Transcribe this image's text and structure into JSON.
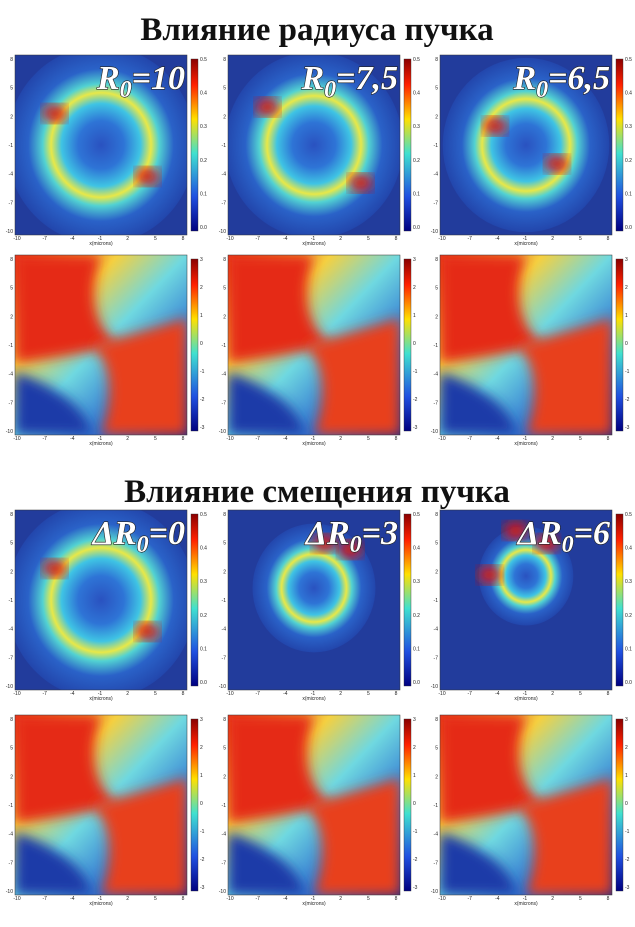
{
  "sections": [
    {
      "title": "Влияние радиуса пучка",
      "panels": [
        {
          "symbol": "R",
          "subscript": "0",
          "value": "=10"
        },
        {
          "symbol": "R",
          "subscript": "0",
          "value": "=7,5"
        },
        {
          "symbol": "R",
          "subscript": "0",
          "value": "=6,5"
        }
      ]
    },
    {
      "title": "Влияние смещения пучка",
      "panels": [
        {
          "symbol": "ΔR",
          "subscript": "0",
          "value": "=0"
        },
        {
          "symbol": "ΔR",
          "subscript": "0",
          "value": "=3"
        },
        {
          "symbol": "ΔR",
          "subscript": "0",
          "value": "=6"
        }
      ]
    }
  ],
  "x_axis_label": "x(microns)",
  "x_ticks": [
    "-10",
    "-7",
    "-4",
    "-1",
    "2",
    "5",
    "8"
  ],
  "y_ticks": [
    "8",
    "5",
    "2",
    "-1",
    "-4",
    "-7",
    "-10"
  ],
  "intensity_ticks": [
    "0.5",
    "0.4",
    "0.3",
    "0.2",
    "0.1",
    "0.0"
  ],
  "phase_ticks": [
    "3",
    "2",
    "1",
    "0",
    "-1",
    "-2",
    "-3"
  ]
}
